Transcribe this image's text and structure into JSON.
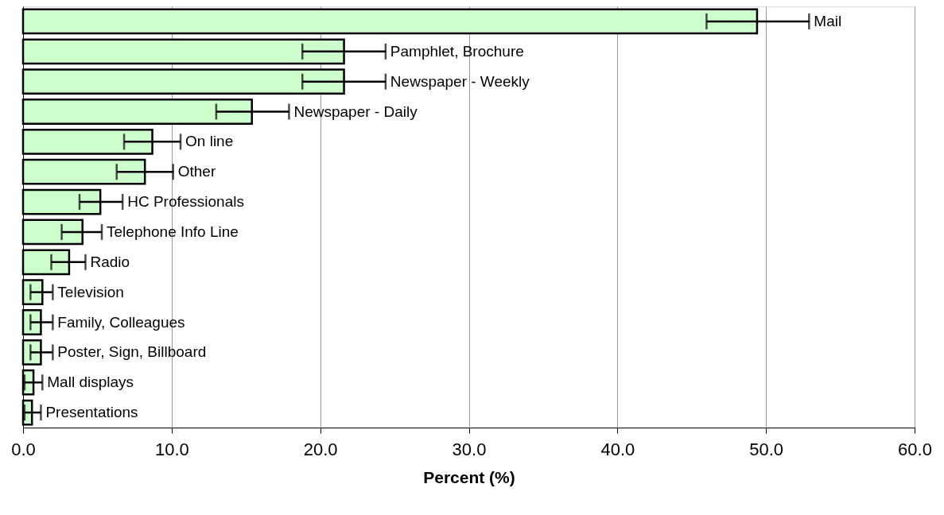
{
  "chart_data": {
    "type": "bar",
    "orientation": "horizontal",
    "xlabel": "Percent (%)",
    "categories": [
      "Mail",
      "Pamphlet, Brochure",
      "Newspaper - Weekly",
      "Newspaper - Daily",
      "On line",
      "Other",
      "HC Professionals",
      "Telephone Info Line",
      "Radio",
      "Television",
      "Family, Colleagues",
      "Poster, Sign, Billboard",
      "Mall displays",
      "Presentations"
    ],
    "values": [
      49.4,
      21.6,
      21.6,
      15.4,
      8.7,
      8.2,
      5.2,
      4.0,
      3.1,
      1.3,
      1.2,
      1.2,
      0.7,
      0.6
    ],
    "errors": [
      [
        46.0,
        52.9
      ],
      [
        18.8,
        24.4
      ],
      [
        18.8,
        24.4
      ],
      [
        13.0,
        17.9
      ],
      [
        6.8,
        10.6
      ],
      [
        6.3,
        10.1
      ],
      [
        3.8,
        6.7
      ],
      [
        2.6,
        5.3
      ],
      [
        1.9,
        4.2
      ],
      [
        0.5,
        2.0
      ],
      [
        0.5,
        2.0
      ],
      [
        0.5,
        2.0
      ],
      [
        0.1,
        1.3
      ],
      [
        0.1,
        1.2
      ]
    ],
    "color": "#ccffcc",
    "xlim": [
      0,
      60
    ],
    "xticks": [
      {
        "value": 0,
        "label": "0.0"
      },
      {
        "value": 10,
        "label": "10.0"
      },
      {
        "value": 20,
        "label": "20.0"
      },
      {
        "value": 30,
        "label": "30.0"
      },
      {
        "value": 40,
        "label": "40.0"
      },
      {
        "value": 50,
        "label": "50.0"
      },
      {
        "value": 60,
        "label": "60.0"
      }
    ],
    "grid": "x"
  }
}
